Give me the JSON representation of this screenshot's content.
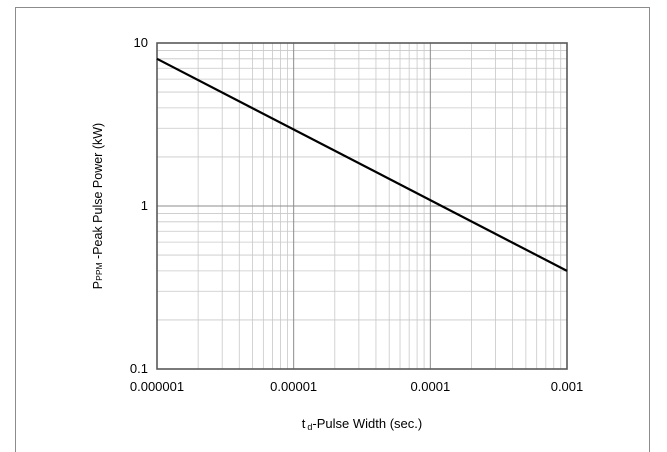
{
  "chart_data": {
    "type": "line",
    "x_scale": "log",
    "y_scale": "log",
    "xlim": [
      1e-06,
      0.001
    ],
    "ylim": [
      0.1,
      10
    ],
    "x_ticks": [
      "0.000001",
      "0.00001",
      "0.0001",
      "0.001"
    ],
    "y_ticks": [
      "10",
      "1",
      "0.1"
    ],
    "xlabel": {
      "main": "t",
      "sub": "d",
      "rest": "-Pulse Width (sec.)"
    },
    "ylabel": {
      "main": "P",
      "sub": "PPM",
      "rest": " -Peak Pulse Power (kW)"
    },
    "grid": true,
    "series": [
      {
        "x": [
          1e-06,
          0.001
        ],
        "y": [
          8.0,
          0.4
        ],
        "color": "#000000"
      }
    ]
  }
}
